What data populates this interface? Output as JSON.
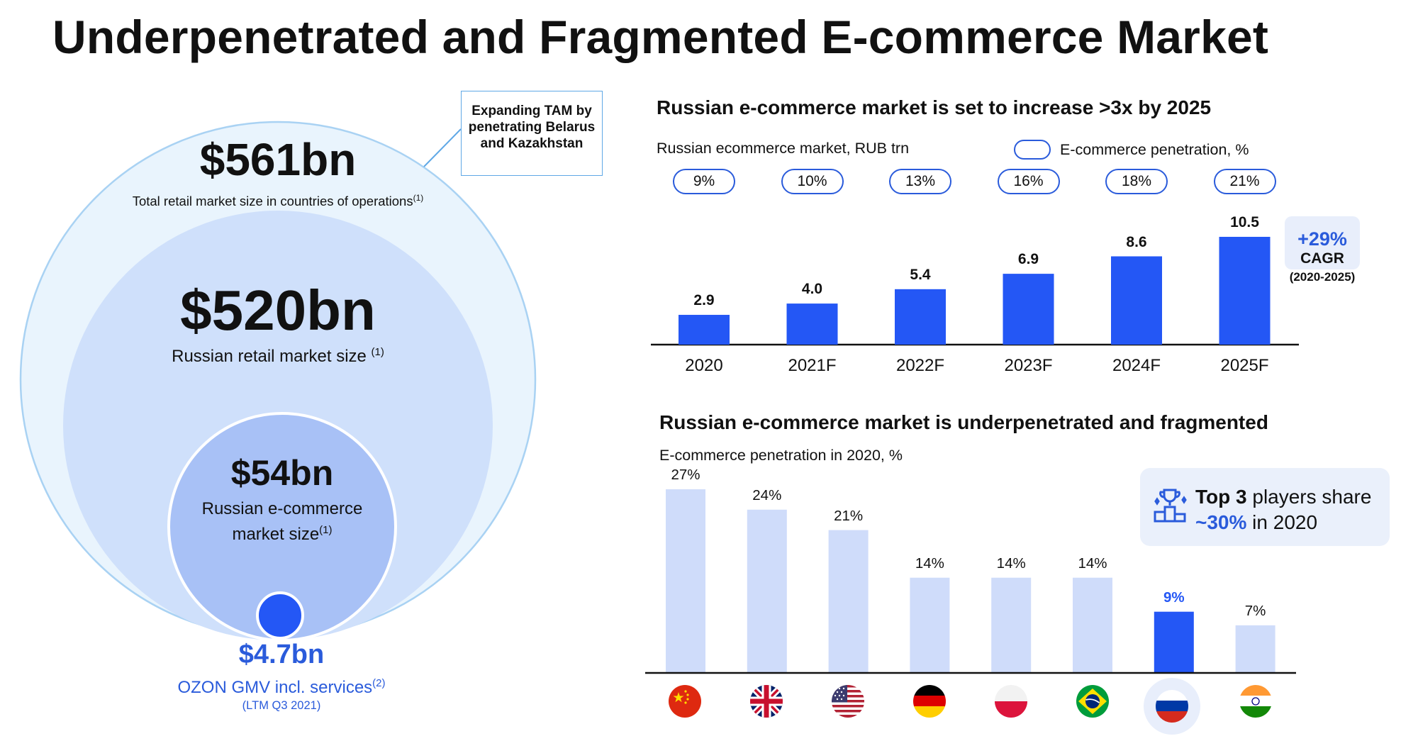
{
  "title": "Underpenetrated and Fragmented E-commerce Market",
  "left": {
    "tam_note": "Expanding TAM by penetrating Belarus and Kazakhstan",
    "circles": [
      {
        "value": "$561bn",
        "label": "Total retail market size in countries of operations",
        "note": "(1)"
      },
      {
        "value": "$520bn",
        "label": "Russian retail market size",
        "note": "(1)"
      },
      {
        "value": "$54bn",
        "label_line1": "Russian e-commerce",
        "label_line2": "market size",
        "note": "(1)"
      },
      {
        "value": "$4.7bn",
        "label": "OZON GMV incl. services",
        "note": "(2)",
        "sub": "(LTM Q3 2021)"
      }
    ],
    "colors": {
      "outer": "#e9f4fd",
      "outer_stroke": "#a9d2f3",
      "middle": "#cfe0fb",
      "inner": "#a8c1f6",
      "dot": "#2457f5",
      "ozon_text": "#2a5bdb"
    }
  },
  "top_chart": {
    "title": "Russian e-commerce market is set to increase >3x by 2025",
    "subtitle": "Russian ecommerce market, RUB trn",
    "legend_label": "E-commerce penetration, %",
    "penetration": [
      "9%",
      "10%",
      "13%",
      "16%",
      "18%",
      "21%"
    ],
    "cagr": {
      "value": "+29%",
      "label": "CAGR",
      "period": "(2020-2025)"
    }
  },
  "bottom_chart": {
    "title": "Russian e-commerce market is underpenetrated and fragmented",
    "subtitle": "E-commerce penetration in 2020, %",
    "callout": {
      "bold": "Top 3",
      "rest_line1": " players share",
      "highlight": "~30%",
      "rest_line2": " in 2020"
    }
  },
  "chart_data": [
    {
      "type": "bar",
      "title": "Russian e-commerce market is set to increase >3x by 2025",
      "ylabel": "Russian ecommerce market, RUB trn",
      "categories": [
        "2020",
        "2021F",
        "2022F",
        "2023F",
        "2024F",
        "2025F"
      ],
      "values": [
        2.9,
        4.0,
        5.4,
        6.9,
        8.6,
        10.5
      ],
      "labels": [
        "2.9",
        "4.0",
        "5.4",
        "6.9",
        "8.6",
        "10.5"
      ],
      "secondary_series": {
        "name": "E-commerce penetration, %",
        "values": [
          9,
          10,
          13,
          16,
          18,
          21
        ]
      },
      "color": "#2457f5"
    },
    {
      "type": "bar",
      "title": "Russian e-commerce market is underpenetrated and fragmented",
      "ylabel": "E-commerce penetration in 2020, %",
      "categories": [
        "China",
        "UK",
        "USA",
        "Germany",
        "Poland",
        "Brazil",
        "Russia",
        "India"
      ],
      "values": [
        27,
        24,
        21,
        14,
        14,
        14,
        9,
        7
      ],
      "labels": [
        "27%",
        "24%",
        "21%",
        "14%",
        "14%",
        "14%",
        "9%",
        "7%"
      ],
      "highlight": "Russia",
      "color": "#cfdcfa",
      "highlight_color": "#2457f5"
    }
  ]
}
